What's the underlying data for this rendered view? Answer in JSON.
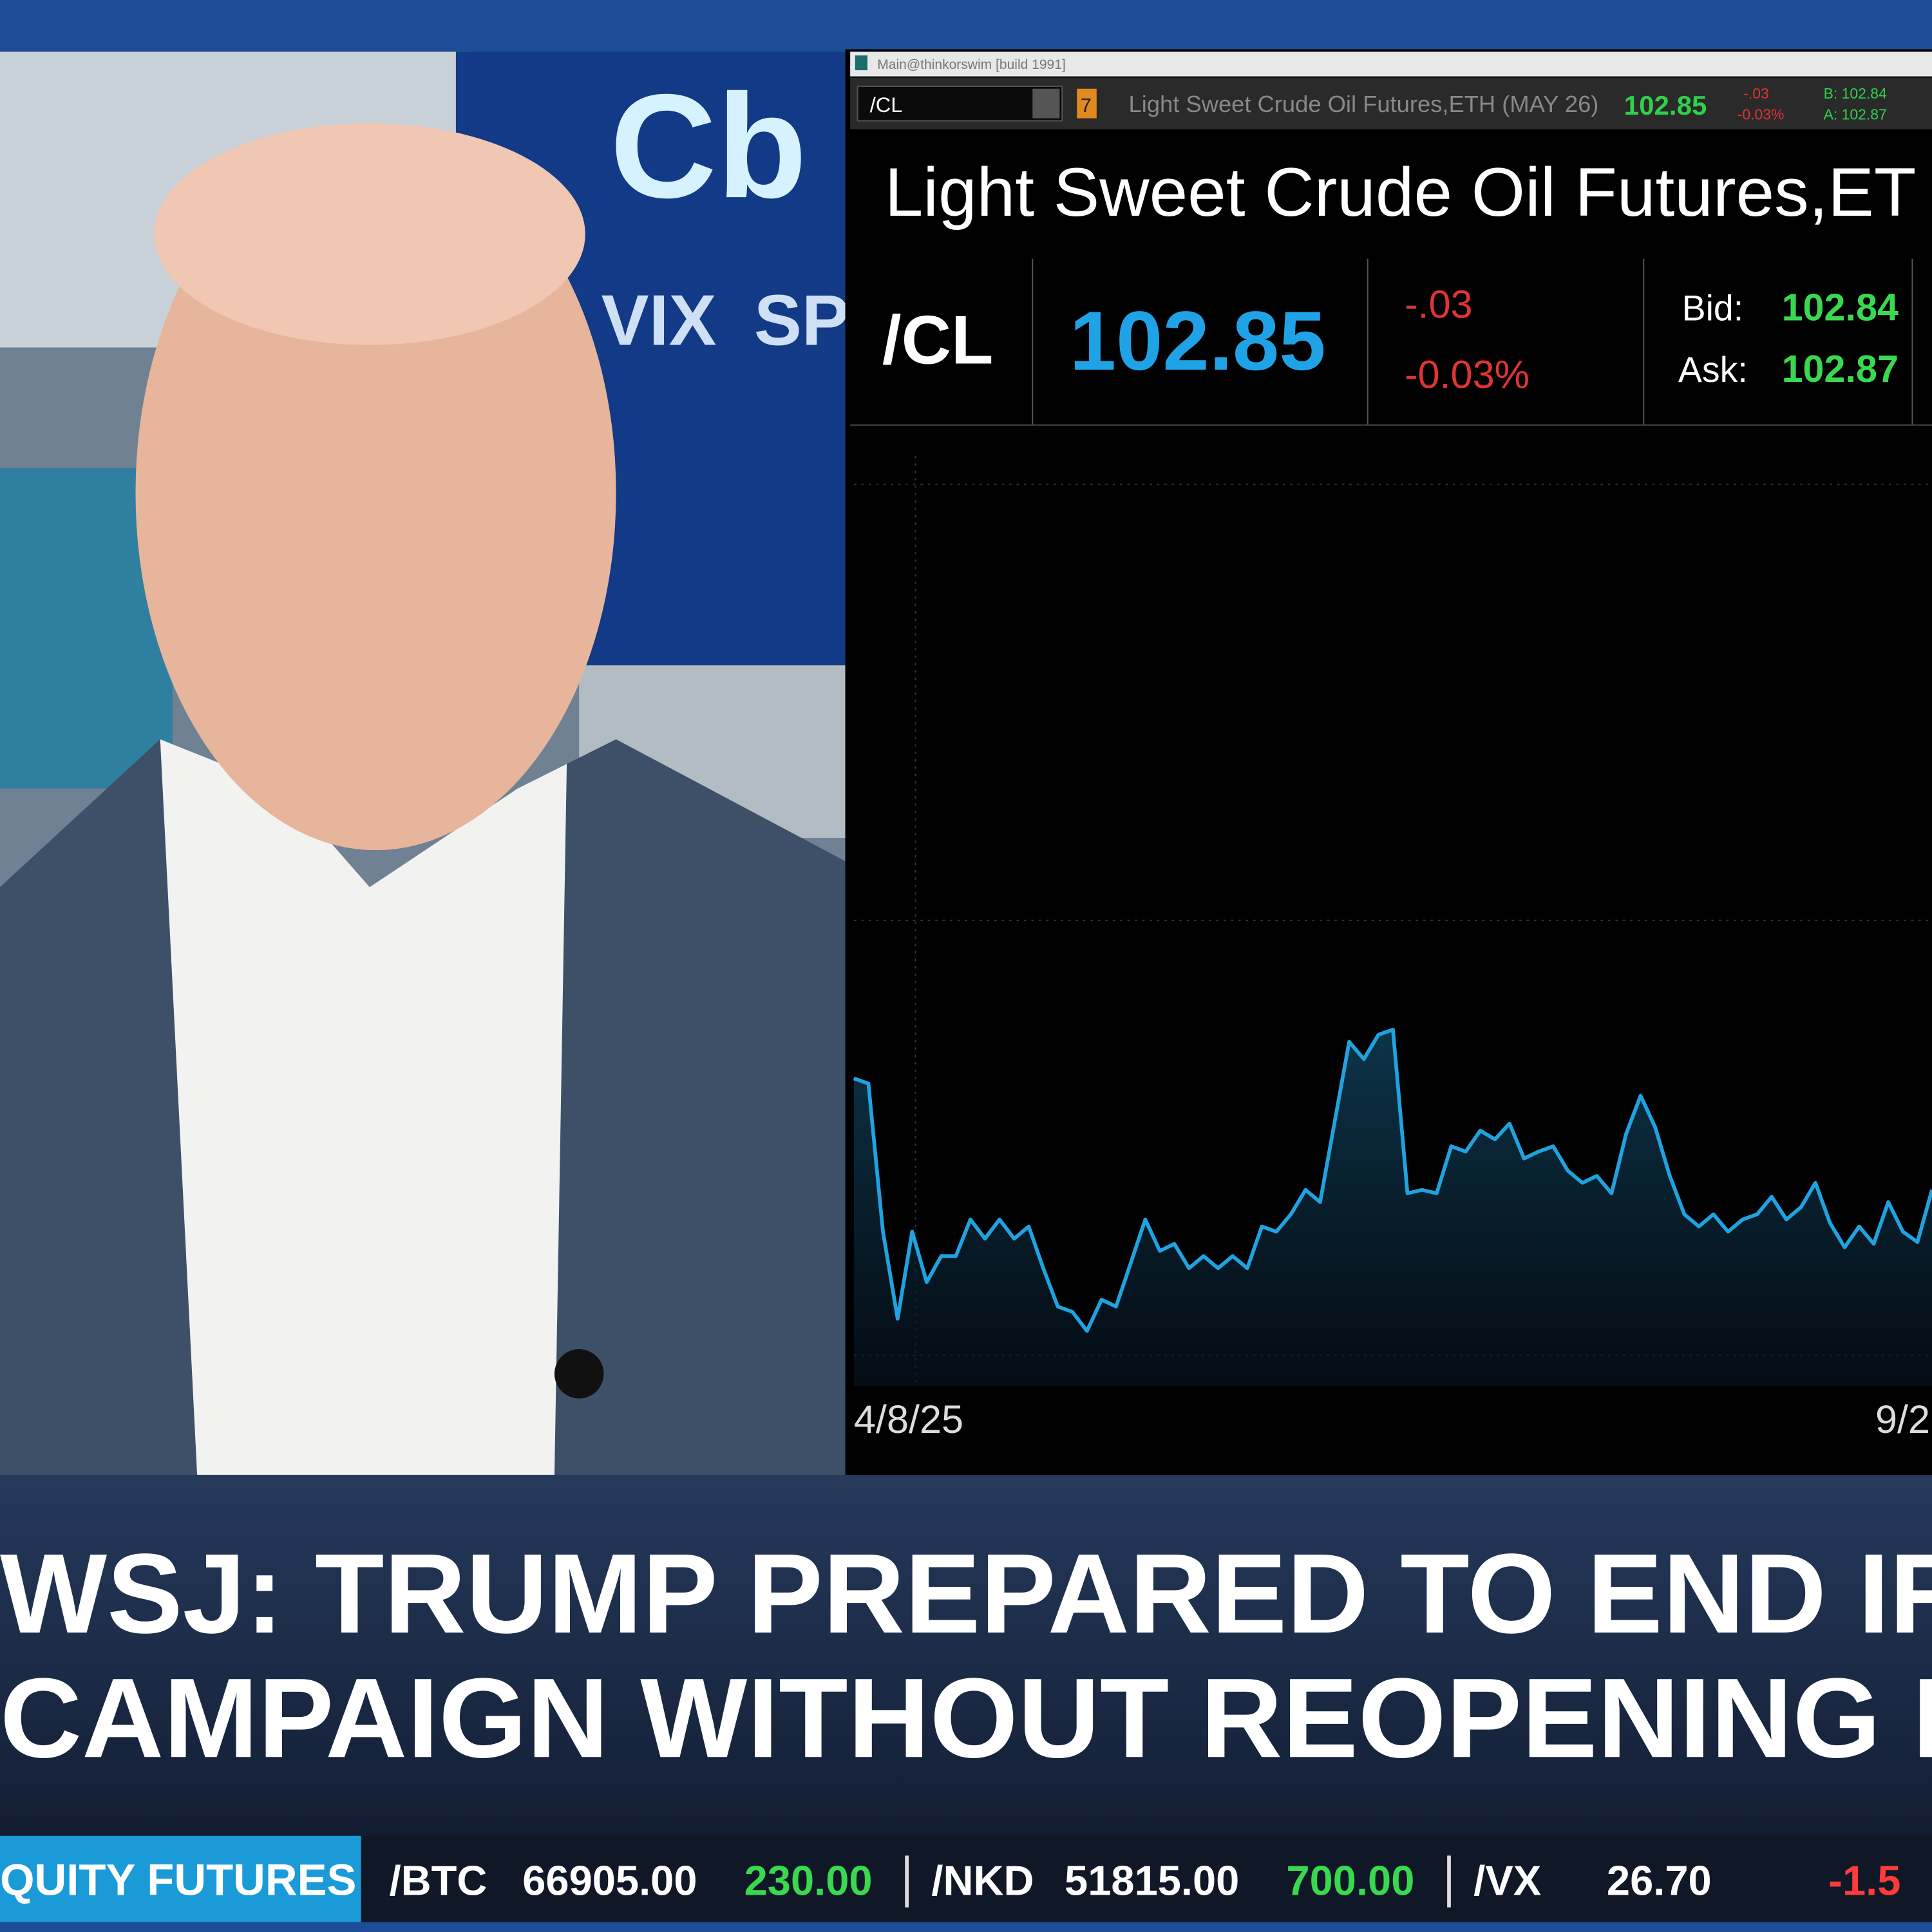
{
  "window": {
    "title_bar": "Main@thinkorswim [build 1991]",
    "symbol_box": "/CL",
    "badge": "7",
    "description": "Light Sweet Crude Oil Futures,ETH (MAY 26)",
    "last": "102.85",
    "change": "-.03",
    "change_pct": "-0.03%",
    "bid": "B: 102.84",
    "ask": "A: 102.87"
  },
  "quote": {
    "title": "Light Sweet Crude Oil Futures,ET",
    "symbol": "/CL",
    "last": "102.85",
    "change": "-.03",
    "change_pct": "-0.03%",
    "bid_label": "Bid:",
    "bid": "102.84",
    "ask_label": "Ask:",
    "ask": "102.87"
  },
  "chart_data": {
    "type": "line",
    "color": "#1fa3e0",
    "ylim": [
      55,
      105
    ],
    "x_labels": [
      "4/8/25",
      "9/2"
    ],
    "values": [
      70.9,
      70.6,
      62.1,
      57.1,
      62.1,
      59.2,
      60.7,
      60.7,
      62.8,
      61.7,
      62.8,
      61.7,
      62.4,
      60.0,
      57.8,
      57.5,
      56.4,
      58.2,
      57.8,
      60.3,
      62.8,
      61.0,
      61.4,
      60.0,
      60.7,
      60.0,
      60.7,
      60.0,
      62.4,
      62.1,
      63.1,
      64.5,
      63.8,
      68.4,
      73.0,
      72.0,
      73.4,
      73.7,
      64.3,
      64.5,
      64.3,
      67.0,
      66.7,
      67.9,
      67.4,
      68.3,
      66.3,
      66.7,
      67.0,
      65.6,
      64.9,
      65.3,
      64.3,
      67.7,
      69.9,
      68.1,
      65.3,
      63.1,
      62.4,
      63.1,
      62.1,
      62.8,
      63.1,
      64.1,
      62.8,
      63.5,
      64.9,
      62.6,
      61.2,
      62.4,
      61.4,
      63.8,
      62.1,
      61.5,
      64.5
    ]
  },
  "studio": {
    "logo": "Cb",
    "screen_left": "VIX",
    "screen_right": "SPX"
  },
  "headline": {
    "lines": [
      "WSJ: TRUMP PREPARED TO END IRAN",
      "CAMPAIGN WITHOUT REOPENING HOR"
    ]
  },
  "ticker": {
    "label": "QUITY FUTURES",
    "items": [
      {
        "symbol": "/BTC",
        "price": "66905.00",
        "change": "230.00"
      },
      {
        "symbol": "/NKD",
        "price": "51815.00",
        "change": "700.00"
      },
      {
        "symbol": "/VX",
        "price": "26.70",
        "change": "-1.5"
      }
    ]
  }
}
